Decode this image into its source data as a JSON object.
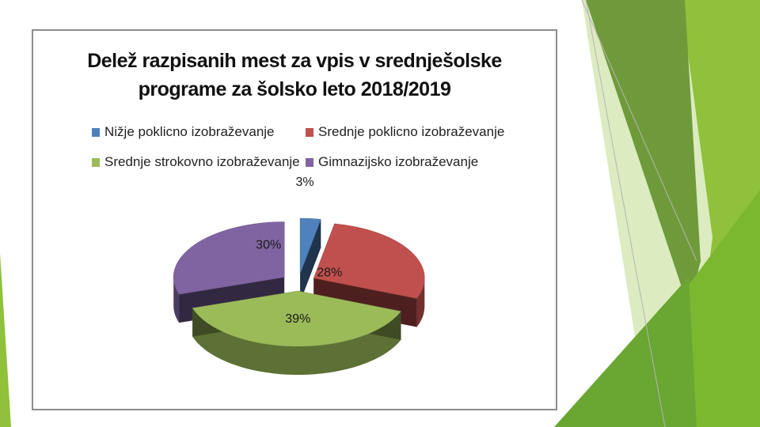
{
  "chart_data": {
    "type": "pie",
    "title_lines": [
      "Delež razpisanih mest za vpis v srednješolske",
      "programe za šolsko leto 2018/2019"
    ],
    "legend_position": "top",
    "categories": [
      "Nižje poklicno izobraževanje",
      "Srednje poklicno izobraževanje",
      "Srednje strokovno izobraževanje",
      "Gimnazijsko izobraževanje"
    ],
    "values": [
      3,
      28,
      39,
      30
    ],
    "labels": [
      "3%",
      "28%",
      "39%",
      "30%"
    ],
    "colors": [
      "#4f81bd",
      "#c0504d",
      "#9bbb59",
      "#8064a2"
    ]
  },
  "slide_colors": {
    "accent_dark": "#6f9a3a",
    "accent_mid": "#8fc13a",
    "accent_light": "#dcebc0"
  }
}
